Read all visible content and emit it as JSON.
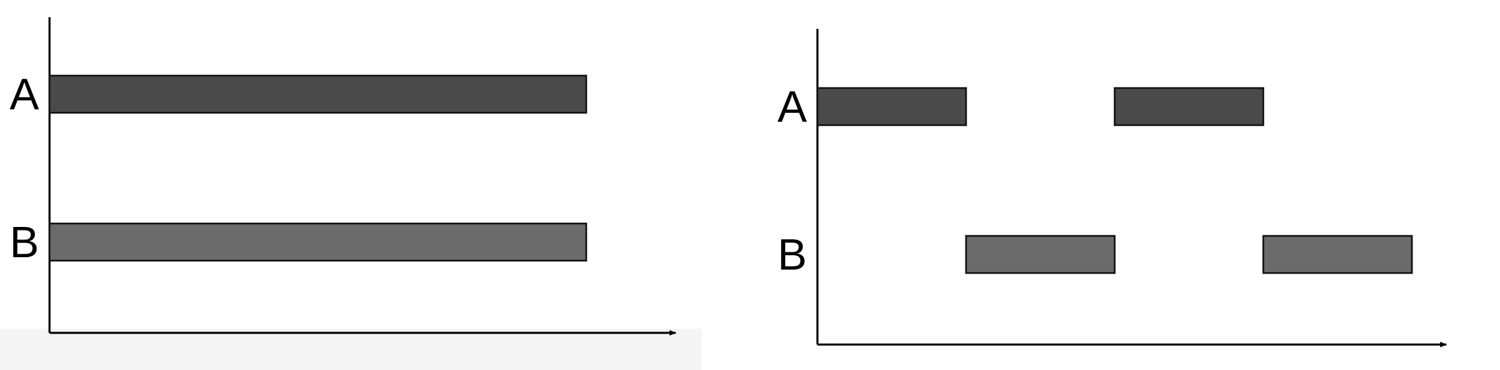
{
  "diagram": {
    "panels": [
      {
        "id": "left",
        "rows": [
          {
            "label": "A",
            "color": "#4a4a4a",
            "segments": [
              [
                0,
                1
              ]
            ]
          },
          {
            "label": "B",
            "color": "#6b6b6b",
            "segments": [
              [
                0,
                1
              ]
            ]
          }
        ]
      },
      {
        "id": "right",
        "rows": [
          {
            "label": "A",
            "color": "#4a4a4a",
            "segments": [
              [
                0,
                1
              ],
              [
                2,
                3
              ]
            ]
          },
          {
            "label": "B",
            "color": "#6b6b6b",
            "segments": [
              [
                1,
                2
              ],
              [
                3,
                4
              ]
            ]
          }
        ]
      }
    ]
  }
}
